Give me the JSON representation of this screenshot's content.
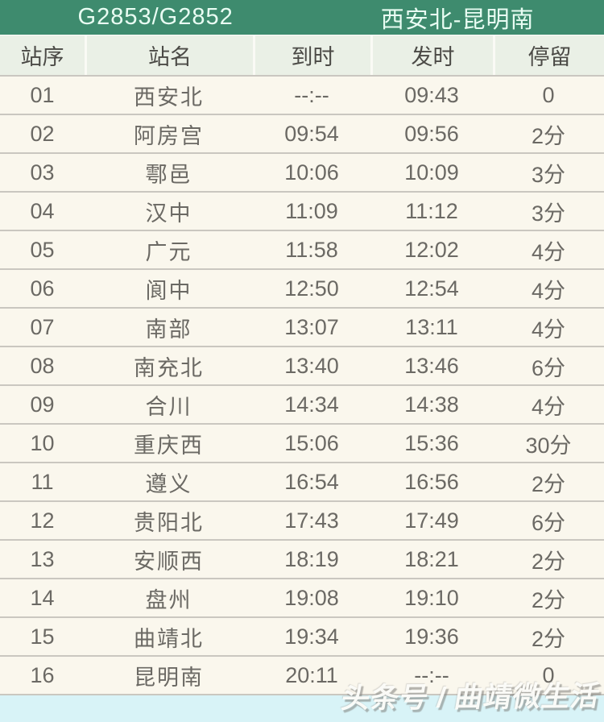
{
  "header": {
    "train_number": "G2853/G2852",
    "route": "西安北-昆明南"
  },
  "table": {
    "columns": [
      "站序",
      "站名",
      "到时",
      "发时",
      "停留"
    ],
    "rows": [
      {
        "seq": "01",
        "station": "西安北",
        "arrive": "--:--",
        "depart": "09:43",
        "stop": "0"
      },
      {
        "seq": "02",
        "station": "阿房宫",
        "arrive": "09:54",
        "depart": "09:56",
        "stop": "2分"
      },
      {
        "seq": "03",
        "station": "鄠邑",
        "arrive": "10:06",
        "depart": "10:09",
        "stop": "3分"
      },
      {
        "seq": "04",
        "station": "汉中",
        "arrive": "11:09",
        "depart": "11:12",
        "stop": "3分"
      },
      {
        "seq": "05",
        "station": "广元",
        "arrive": "11:58",
        "depart": "12:02",
        "stop": "4分"
      },
      {
        "seq": "06",
        "station": "阆中",
        "arrive": "12:50",
        "depart": "12:54",
        "stop": "4分"
      },
      {
        "seq": "07",
        "station": "南部",
        "arrive": "13:07",
        "depart": "13:11",
        "stop": "4分"
      },
      {
        "seq": "08",
        "station": "南充北",
        "arrive": "13:40",
        "depart": "13:46",
        "stop": "6分"
      },
      {
        "seq": "09",
        "station": "合川",
        "arrive": "14:34",
        "depart": "14:38",
        "stop": "4分"
      },
      {
        "seq": "10",
        "station": "重庆西",
        "arrive": "15:06",
        "depart": "15:36",
        "stop": "30分"
      },
      {
        "seq": "11",
        "station": "遵义",
        "arrive": "16:54",
        "depart": "16:56",
        "stop": "2分"
      },
      {
        "seq": "12",
        "station": "贵阳北",
        "arrive": "17:43",
        "depart": "17:49",
        "stop": "6分"
      },
      {
        "seq": "13",
        "station": "安顺西",
        "arrive": "18:19",
        "depart": "18:21",
        "stop": "2分"
      },
      {
        "seq": "14",
        "station": "盘州",
        "arrive": "19:08",
        "depart": "19:10",
        "stop": "2分"
      },
      {
        "seq": "15",
        "station": "曲靖北",
        "arrive": "19:34",
        "depart": "19:36",
        "stop": "2分"
      },
      {
        "seq": "16",
        "station": "昆明南",
        "arrive": "20:11",
        "depart": "--:--",
        "stop": "0"
      }
    ]
  },
  "watermark": {
    "text": "头条号 / 曲靖微生活"
  },
  "colors": {
    "green": "#3e8b6e",
    "title-text": "#e9fdf3",
    "head-bg": "#eaf0e6",
    "head-text": "#4b4a46",
    "row-bg": "#faf7ed",
    "body-text": "#6b6964",
    "line": "#cac7c0",
    "band-blue": "#d8f3f7"
  }
}
